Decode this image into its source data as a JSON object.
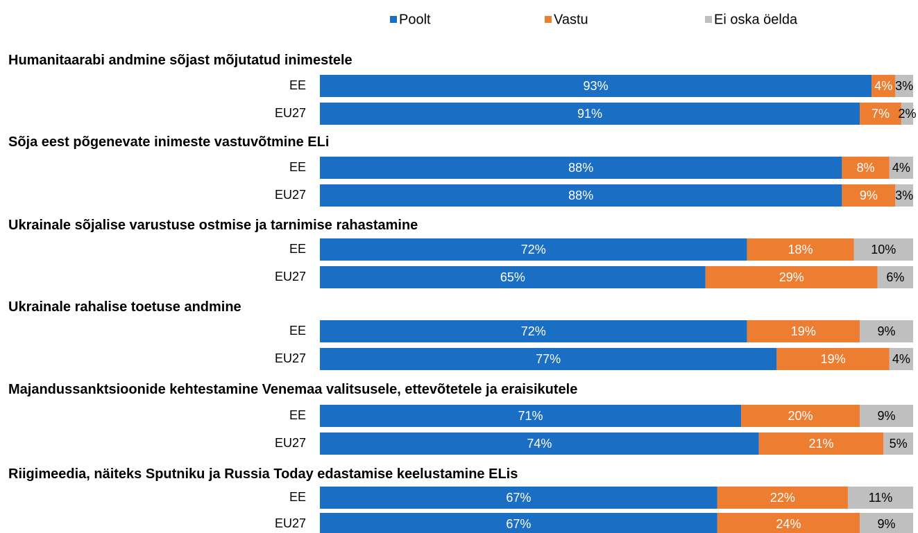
{
  "chart_data": {
    "type": "bar",
    "orientation": "horizontal",
    "stacked": true,
    "xlim": [
      0,
      100
    ],
    "legend": "top",
    "groups": [
      {
        "title": "Humanitaarabi andmine sõjast mõjutatud inimestele"
      },
      {
        "title": "Sõja eest põgenevate inimeste vastuvõtmine ELi"
      },
      {
        "title": "Ukrainale sõjalise varustuse ostmise ja tarnimise rahastamine"
      },
      {
        "title": "Ukrainale rahalise toetuse andmine"
      },
      {
        "title": "Majandussanktsioonide kehtestamine Venemaa valitsusele, ettevõtetele ja eraisikutele"
      },
      {
        "title": "Riigimeedia, näiteks Sputniku ja Russia Today edastamise keelustamine ELis"
      }
    ],
    "categories": [
      "EE",
      "EU27",
      "EE",
      "EU27",
      "EE",
      "EU27",
      "EE",
      "EU27",
      "EE",
      "EU27",
      "EE",
      "EU27"
    ],
    "series": [
      {
        "name": "Poolt",
        "color": "#1a6fc4",
        "label_color": "#ffffff",
        "values": [
          93,
          91,
          88,
          88,
          72,
          65,
          72,
          77,
          71,
          74,
          67,
          67
        ],
        "value_labels": [
          "93%",
          "91%",
          "88%",
          "88%",
          "72%",
          "65%",
          "72%",
          "77%",
          "71%",
          "74%",
          "67%",
          "67%"
        ]
      },
      {
        "name": "Vastu",
        "color": "#ed7d31",
        "label_color": "#ffffff",
        "values": [
          4,
          7,
          8,
          9,
          18,
          29,
          19,
          19,
          20,
          21,
          22,
          24
        ],
        "value_labels": [
          "4%",
          "7%",
          "8%",
          "9%",
          "18%",
          "29%",
          "19%",
          "19%",
          "20%",
          "21%",
          "22%",
          "24%"
        ]
      },
      {
        "name": "Ei oska öelda",
        "color": "#bfbfbf",
        "label_color": "#000000",
        "values": [
          3,
          2,
          4,
          3,
          10,
          6,
          9,
          4,
          9,
          5,
          11,
          9
        ],
        "value_labels": [
          "3%",
          "2%",
          "4%",
          "3%",
          "10%",
          "6%",
          "9%",
          "4%",
          "9%",
          "5%",
          "11%",
          "9%"
        ]
      }
    ]
  }
}
